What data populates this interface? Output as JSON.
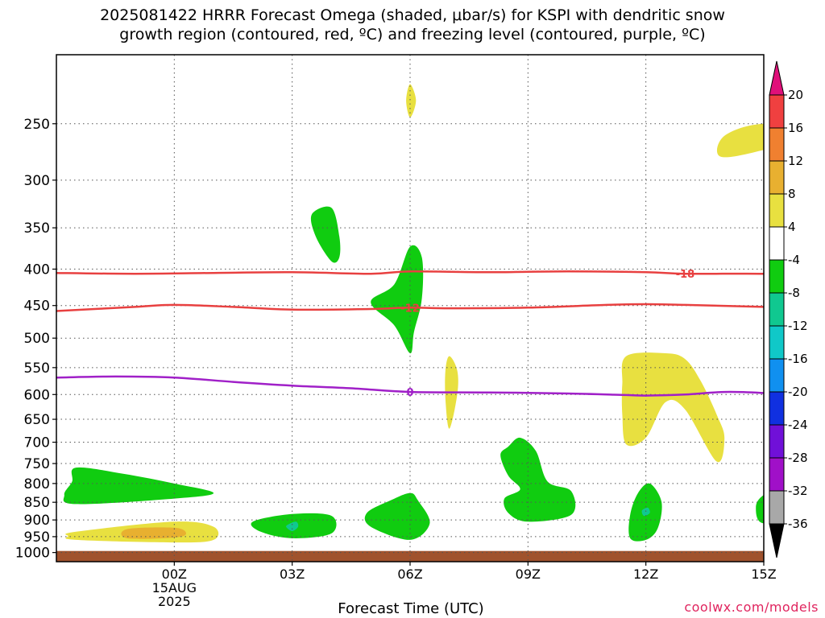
{
  "title_line1": "2025081422 HRRR Forecast Omega (shaded, μbar/s) for KSPI with dendritic snow",
  "title_line2": "growth region (contoured, red, ºC) and freezing level (contoured, purple, ºC)",
  "chart_data": {
    "type": "time-height contour",
    "x_axis": {
      "label": "Forecast Time (UTC)",
      "range_hours": [
        -3.0,
        15.0
      ],
      "ticks": [
        {
          "hour": 0,
          "label": "00Z",
          "sublabels": [
            "15AUG",
            "2025"
          ]
        },
        {
          "hour": 3,
          "label": "03Z"
        },
        {
          "hour": 6,
          "label": "06Z"
        },
        {
          "hour": 9,
          "label": "09Z"
        },
        {
          "hour": 12,
          "label": "12Z"
        },
        {
          "hour": 15,
          "label": "15Z"
        }
      ]
    },
    "y_axis": {
      "scale": "log-pressure",
      "range_mb": [
        1030,
        200
      ],
      "ticks": [
        250,
        300,
        350,
        400,
        450,
        500,
        550,
        600,
        650,
        700,
        750,
        800,
        850,
        900,
        950,
        1000
      ]
    },
    "grid": true,
    "colorbar": {
      "unit": "μbar/s",
      "labels": [
        "20",
        "16",
        "12",
        "8",
        "4",
        "-4",
        "-8",
        "-12",
        "-16",
        "-20",
        "-24",
        "-28",
        "-32",
        "-36"
      ],
      "colors": [
        "#e0107a",
        "#f04040",
        "#f08030",
        "#e8b030",
        "#e8e040",
        "#ffffff",
        "#10cc10",
        "#10c890",
        "#10c8c8",
        "#1090f0",
        "#1030e0",
        "#7010d8",
        "#a010c8",
        "#a8a8a8",
        "#000000"
      ]
    },
    "shaded_regions": [
      {
        "category": "4 to 8",
        "color": "#e8e040",
        "points": [
          [
            6.0,
            220
          ],
          [
            6.15,
            232
          ],
          [
            6.0,
            245
          ],
          [
            5.9,
            232
          ]
        ]
      },
      {
        "category": "4 to 8",
        "color": "#e8e040",
        "points": [
          [
            14.0,
            260
          ],
          [
            15.0,
            250
          ],
          [
            16.6,
            255
          ],
          [
            15.0,
            272
          ],
          [
            13.9,
            278
          ]
        ]
      },
      {
        "category": "4 to 8",
        "color": "#e8e040",
        "points": [
          [
            7.0,
            530
          ],
          [
            7.2,
            555
          ],
          [
            7.2,
            600
          ],
          [
            7.0,
            670
          ],
          [
            6.9,
            610
          ],
          [
            6.9,
            555
          ]
        ]
      },
      {
        "category": "4 to 8",
        "color": "#e8e040",
        "points": [
          [
            11.5,
            530
          ],
          [
            12.5,
            525
          ],
          [
            13.0,
            535
          ],
          [
            13.4,
            575
          ],
          [
            13.8,
            640
          ],
          [
            14.0,
            690
          ],
          [
            13.8,
            745
          ],
          [
            13.0,
            630
          ],
          [
            12.5,
            615
          ],
          [
            12.0,
            690
          ],
          [
            11.5,
            705
          ],
          [
            11.4,
            640
          ],
          [
            11.4,
            580
          ]
        ]
      },
      {
        "category": "4 to 8",
        "color": "#e8e040",
        "points": [
          [
            -2.5,
            935
          ],
          [
            0.0,
            905
          ],
          [
            1.0,
            920
          ],
          [
            1.0,
            960
          ],
          [
            0.0,
            968
          ],
          [
            -2.5,
            960
          ],
          [
            -2.7,
            948
          ]
        ]
      },
      {
        "category": "8 to 12",
        "color": "#e8b030",
        "points": [
          [
            -1.2,
            927
          ],
          [
            0.0,
            923
          ],
          [
            0.3,
            940
          ],
          [
            0.0,
            953
          ],
          [
            -1.2,
            955
          ]
        ]
      },
      {
        "category": "-4 to -8",
        "color": "#10cc10",
        "points": [
          [
            3.5,
            335
          ],
          [
            4.0,
            328
          ],
          [
            4.2,
            360
          ],
          [
            4.2,
            385
          ],
          [
            4.0,
            390
          ],
          [
            3.6,
            360
          ]
        ]
      },
      {
        "category": "-4 to -8",
        "color": "#10cc10",
        "points": [
          [
            6.0,
            372
          ],
          [
            6.3,
            385
          ],
          [
            6.3,
            440
          ],
          [
            6.1,
            490
          ],
          [
            6.0,
            525
          ],
          [
            5.6,
            480
          ],
          [
            5.0,
            445
          ],
          [
            5.6,
            420
          ]
        ]
      },
      {
        "category": "-4 to -8",
        "color": "#10cc10",
        "points": [
          [
            -2.5,
            760
          ],
          [
            -1.3,
            775
          ],
          [
            0.0,
            800
          ],
          [
            1.0,
            825
          ],
          [
            0.0,
            840
          ],
          [
            -2.5,
            855
          ],
          [
            -2.8,
            830
          ],
          [
            -2.6,
            795
          ]
        ]
      },
      {
        "category": "-4 to -8",
        "color": "#10cc10",
        "points": [
          [
            3.0,
            883
          ],
          [
            4.0,
            888
          ],
          [
            4.0,
            940
          ],
          [
            3.0,
            955
          ],
          [
            2.2,
            935
          ],
          [
            2.0,
            905
          ]
        ]
      },
      {
        "category": "-4 to -8",
        "color": "#10cc10",
        "points": [
          [
            5.5,
            845
          ],
          [
            6.0,
            825
          ],
          [
            6.2,
            845
          ],
          [
            6.5,
            910
          ],
          [
            6.0,
            960
          ],
          [
            5.0,
            920
          ],
          [
            4.9,
            880
          ]
        ]
      },
      {
        "category": "-4 to -8",
        "color": "#10cc10",
        "points": [
          [
            8.5,
            710
          ],
          [
            8.8,
            690
          ],
          [
            9.2,
            720
          ],
          [
            9.5,
            795
          ],
          [
            10.1,
            820
          ],
          [
            10.1,
            885
          ],
          [
            9.0,
            905
          ],
          [
            8.5,
            880
          ],
          [
            8.4,
            840
          ],
          [
            8.8,
            815
          ],
          [
            8.5,
            780
          ],
          [
            8.3,
            730
          ]
        ]
      },
      {
        "category": "-4 to -8",
        "color": "#10cc10",
        "points": [
          [
            11.8,
            825
          ],
          [
            12.1,
            800
          ],
          [
            12.4,
            850
          ],
          [
            12.3,
            925
          ],
          [
            12.0,
            960
          ],
          [
            11.6,
            955
          ],
          [
            11.6,
            885
          ]
        ]
      },
      {
        "category": "-4 to -8",
        "color": "#10cc10",
        "points": [
          [
            15.6,
            660
          ],
          [
            15.9,
            610
          ],
          [
            16.5,
            600
          ],
          [
            16.6,
            720
          ],
          [
            16.2,
            770
          ],
          [
            16.5,
            830
          ],
          [
            16.0,
            880
          ],
          [
            15.0,
            910
          ],
          [
            14.8,
            865
          ],
          [
            15.0,
            830
          ],
          [
            15.7,
            795
          ],
          [
            15.7,
            740
          ]
        ]
      },
      {
        "category": "-8 to -12",
        "color": "#10c890",
        "points": [
          [
            2.9,
            913
          ],
          [
            3.1,
            905
          ],
          [
            3.15,
            920
          ],
          [
            3.0,
            933
          ],
          [
            2.85,
            921
          ]
        ]
      },
      {
        "category": "-8 to -12",
        "color": "#10c890",
        "points": [
          [
            11.9,
            873
          ],
          [
            12.05,
            865
          ],
          [
            12.1,
            880
          ],
          [
            11.95,
            888
          ]
        ]
      }
    ],
    "terrain_below_mb": 995,
    "contours": [
      {
        "name": "-18",
        "color": "#e84040",
        "label_at_hour": 13.0,
        "points": [
          [
            -3.0,
            405
          ],
          [
            -1.0,
            406
          ],
          [
            1.0,
            405
          ],
          [
            3.0,
            404
          ],
          [
            5.0,
            406
          ],
          [
            6.0,
            403
          ],
          [
            8.0,
            404
          ],
          [
            10.0,
            403
          ],
          [
            12.0,
            404
          ],
          [
            13.0,
            406
          ],
          [
            15.0,
            406
          ],
          [
            16.0,
            408
          ]
        ]
      },
      {
        "name": "-12",
        "color": "#e84040",
        "label_at_hour": 6.0,
        "points": [
          [
            -3.0,
            458
          ],
          [
            -1.0,
            452
          ],
          [
            0.0,
            449
          ],
          [
            1.5,
            452
          ],
          [
            3.0,
            456
          ],
          [
            5.0,
            455
          ],
          [
            6.0,
            453
          ],
          [
            7.0,
            454
          ],
          [
            9.0,
            453
          ],
          [
            11.0,
            449
          ],
          [
            12.0,
            448
          ],
          [
            13.0,
            449
          ],
          [
            15.0,
            452
          ],
          [
            16.0,
            454
          ]
        ]
      },
      {
        "name": "0",
        "color": "#a020c8",
        "label_at_hour": 6.0,
        "points": [
          [
            -3.0,
            568
          ],
          [
            -1.5,
            566
          ],
          [
            0.0,
            568
          ],
          [
            1.5,
            576
          ],
          [
            3.0,
            583
          ],
          [
            4.5,
            588
          ],
          [
            6.0,
            595
          ],
          [
            8.0,
            596
          ],
          [
            10.0,
            598
          ],
          [
            11.5,
            601
          ],
          [
            12.0,
            602
          ],
          [
            13.0,
            600
          ],
          [
            14.0,
            595
          ],
          [
            15.0,
            597
          ],
          [
            16.0,
            602
          ]
        ]
      }
    ]
  },
  "credit": "coolwx.com/models"
}
